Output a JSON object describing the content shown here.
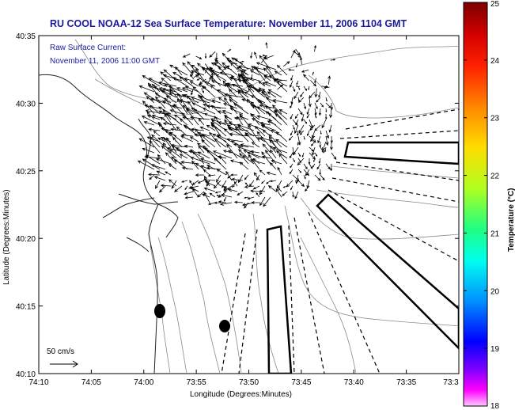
{
  "title": "RU COOL  NOAA-12  Sea Surface Temperature:  November 11, 2006 1104 GMT",
  "info": {
    "line1": "Raw Surface Current:",
    "line2": "November 11, 2006 11:00 GMT"
  },
  "axes": {
    "xlabel": "Longitude (Degrees:Minutes)",
    "ylabel": "Latitude (Degrees:Minutes)",
    "x_ticks": [
      "74:10",
      "74:05",
      "74:00",
      "73:55",
      "73:50",
      "73:45",
      "73:40",
      "73:35",
      "73:3"
    ],
    "y_ticks": [
      "40:35",
      "40:30",
      "40:25",
      "40:20",
      "40:15",
      "40:10"
    ]
  },
  "scale_bar": {
    "label": "50 cm/s"
  },
  "colorbar": {
    "title": "Temperature (°C)",
    "ticks": [
      "25",
      "24",
      "23",
      "22",
      "21",
      "20",
      "19",
      "18"
    ],
    "range": [
      18,
      25
    ]
  }
}
